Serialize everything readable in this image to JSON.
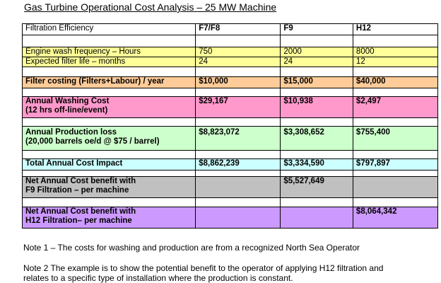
{
  "title": "Gas Turbine Operational Cost Analysis – 25 MW Machine",
  "colors": {
    "white": "#ffffff",
    "yellow": "#ffff99",
    "orange": "#ffcc99",
    "pink": "#ff99cc",
    "green": "#ccffcc",
    "cyan": "#ccffff",
    "gray": "#c0c0c0",
    "purple": "#cc99ff"
  },
  "header": {
    "label": "Filtration Efficiency",
    "f7f8": "F7/F8",
    "f9": "F9",
    "h12": "H12"
  },
  "rows": {
    "engine_wash": {
      "label": "Engine wash frequency – Hours",
      "f7f8": "750",
      "f9": "2000",
      "h12": "8000"
    },
    "filter_life": {
      "label": "Expected filter life – months",
      "f7f8": "24",
      "f9": "24",
      "h12": "12"
    },
    "filter_costing": {
      "label": "Filter costing (Filters+Labour) / year",
      "f7f8": "$10,000",
      "f9": "$15,000",
      "h12": "$40,000"
    },
    "washing_cost": {
      "label_line1": "Annual Washing Cost",
      "label_line2": "(12 hrs off-line/event)",
      "f7f8": "$29,167",
      "f9": "$10,938",
      "h12": "$2,497"
    },
    "production_loss": {
      "label_line1": "Annual Production loss",
      "label_line2": "(20,000 barrels oe/d @ $75 / barrel)",
      "f7f8": "$8,823,072",
      "f9": "$3,308,652",
      "h12": "$755,400"
    },
    "total_impact": {
      "label": "Total Annual Cost Impact",
      "f7f8": "$8,862,239",
      "f9": "$3,334,590",
      "h12": "$797,897"
    },
    "benefit_f9": {
      "label_line1": "Net Annual Cost benefit with",
      "label_line2": "F9 Filtration – per machine",
      "f9": "$5,527,649"
    },
    "benefit_h12": {
      "label_line1": "Net Annual Cost benefit with",
      "label_line2": "H12 Filtration– per machine",
      "h12": "$8,064,342"
    }
  },
  "notes": {
    "note1": "Note 1 – The costs for washing and production are from a recognized North Sea Operator",
    "note2_line1": "Note 2 The example is to show the potential benefit to the operator of applying H12 filtration and",
    "note2_line2": "relates to a specific type of installation where the production is constant."
  }
}
